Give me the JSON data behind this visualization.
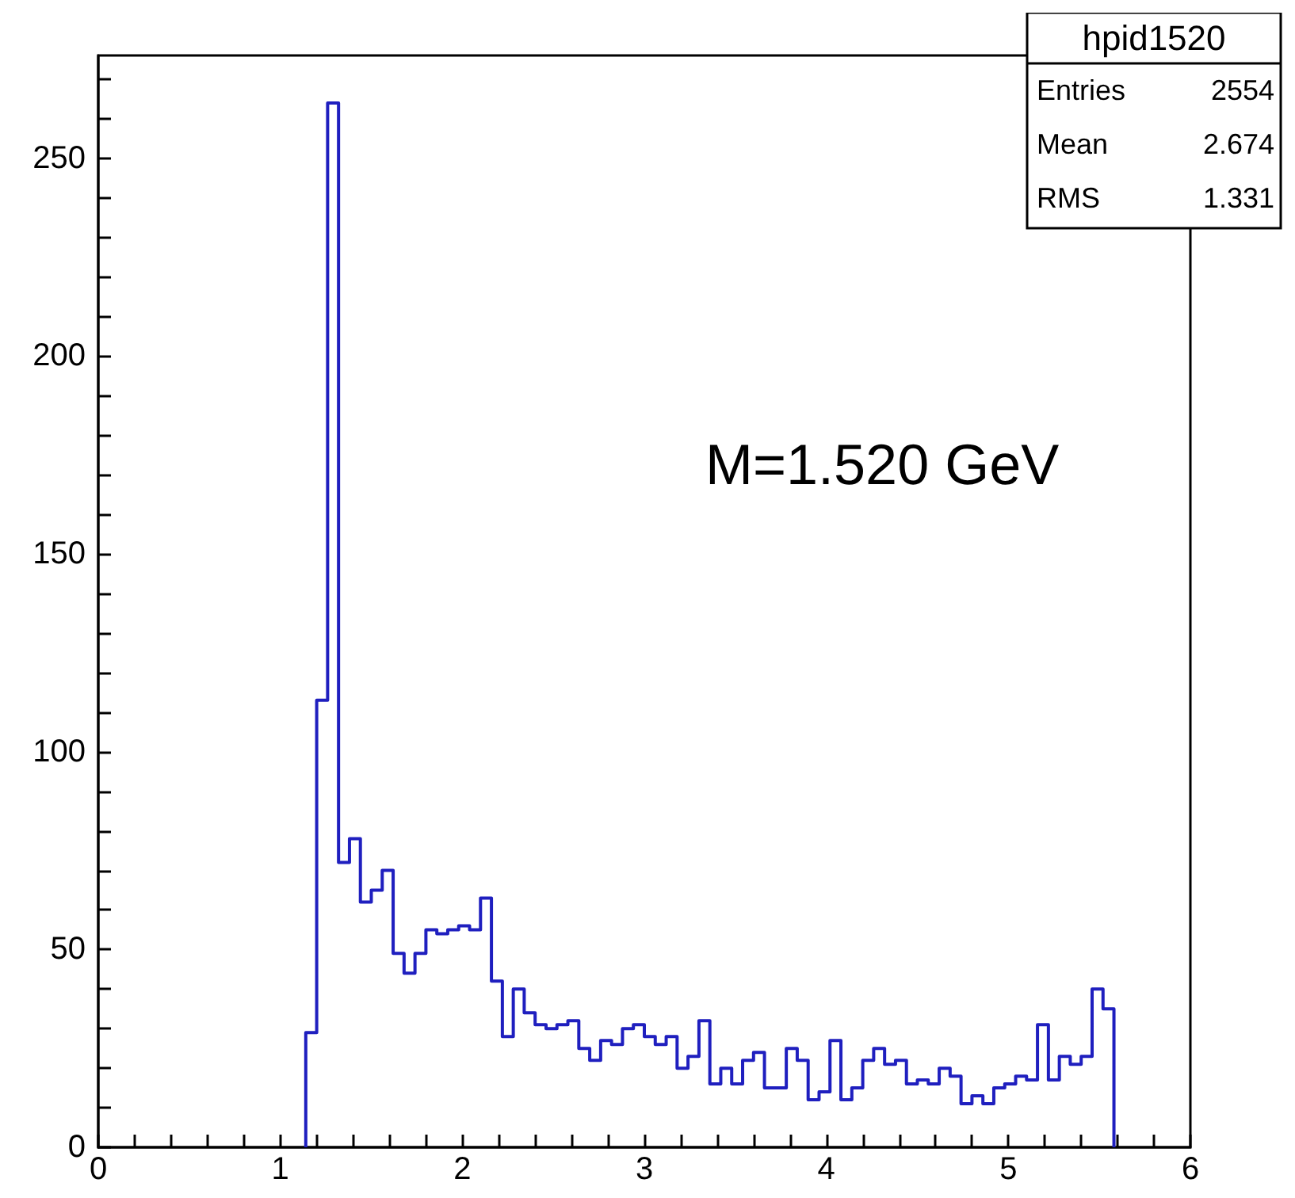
{
  "chart_data": {
    "type": "histogram",
    "bins": [
      1.14,
      1.2,
      1.26,
      1.32,
      1.38,
      1.44,
      1.5,
      1.56,
      1.62,
      1.68,
      1.74,
      1.8,
      1.86,
      1.92,
      1.98,
      2.04,
      2.1,
      2.16,
      2.22,
      2.28,
      2.34,
      2.4,
      2.46,
      2.52,
      2.58,
      2.64,
      2.7,
      2.76,
      2.82,
      2.88,
      2.94,
      3.0,
      3.06,
      3.12,
      3.18,
      3.24,
      3.3,
      3.36,
      3.42,
      3.48,
      3.54,
      3.6,
      3.66,
      3.72,
      3.78,
      3.84,
      3.9,
      3.96,
      4.02,
      4.08,
      4.14,
      4.2,
      4.26,
      4.32,
      4.38,
      4.44,
      4.5,
      4.56,
      4.62,
      4.68,
      4.74,
      4.8,
      4.86,
      4.92,
      4.98,
      5.04,
      5.1,
      5.16,
      5.22,
      5.28,
      5.34,
      5.4,
      5.46,
      5.52,
      5.58
    ],
    "values": [
      29,
      113,
      264,
      72,
      78,
      62,
      65,
      70,
      49,
      44,
      49,
      55,
      54,
      55,
      56,
      55,
      63,
      42,
      28,
      40,
      34,
      31,
      30,
      31,
      32,
      25,
      22,
      27,
      26,
      30,
      31,
      28,
      26,
      28,
      20,
      23,
      32,
      16,
      20,
      16,
      22,
      24,
      15,
      15,
      25,
      22,
      12,
      14,
      27,
      12,
      15,
      22,
      25,
      21,
      22,
      16,
      17,
      16,
      20,
      18,
      11,
      13,
      11,
      15,
      16,
      18,
      17,
      31,
      17,
      23,
      21,
      23,
      40,
      35
    ],
    "color": "#1f1fbf",
    "xlim": [
      0,
      6
    ],
    "ylim": [
      0,
      276
    ],
    "xticks": [
      0,
      {
        "value": 0.2,
        "label": null
      },
      {
        "value": 0.4,
        "label": null
      },
      {
        "value": 0.6,
        "label": null
      },
      {
        "value": 0.8,
        "label": null
      },
      1,
      {
        "value": 1.2,
        "label": null
      },
      {
        "value": 1.4,
        "label": null
      },
      {
        "value": 1.6,
        "label": null
      },
      {
        "value": 1.8,
        "label": null
      },
      2,
      {
        "value": 2.2,
        "label": null
      },
      {
        "value": 2.4,
        "label": null
      },
      {
        "value": 2.6,
        "label": null
      },
      {
        "value": 2.8,
        "label": null
      },
      3,
      {
        "value": 3.2,
        "label": null
      },
      {
        "value": 3.4,
        "label": null
      },
      {
        "value": 3.6,
        "label": null
      },
      {
        "value": 3.8,
        "label": null
      },
      4,
      {
        "value": 4.2,
        "label": null
      },
      {
        "value": 4.4,
        "label": null
      },
      {
        "value": 4.6,
        "label": null
      },
      {
        "value": 4.8,
        "label": null
      },
      5,
      {
        "value": 5.2,
        "label": null
      },
      {
        "value": 5.4,
        "label": null
      },
      {
        "value": 5.6,
        "label": null
      },
      {
        "value": 5.8,
        "label": null
      },
      6
    ],
    "yticks": [
      0,
      {
        "value": 10,
        "label": null
      },
      {
        "value": 20,
        "label": null
      },
      {
        "value": 30,
        "label": null
      },
      {
        "value": 40,
        "label": null
      },
      50,
      {
        "value": 60,
        "label": null
      },
      {
        "value": 70,
        "label": null
      },
      {
        "value": 80,
        "label": null
      },
      {
        "value": 90,
        "label": null
      },
      100,
      {
        "value": 110,
        "label": null
      },
      {
        "value": 120,
        "label": null
      },
      {
        "value": 130,
        "label": null
      },
      {
        "value": 140,
        "label": null
      },
      150,
      {
        "value": 160,
        "label": null
      },
      {
        "value": 170,
        "label": null
      },
      {
        "value": 180,
        "label": null
      },
      {
        "value": 190,
        "label": null
      },
      200,
      {
        "value": 210,
        "label": null
      },
      {
        "value": 220,
        "label": null
      },
      {
        "value": 230,
        "label": null
      },
      {
        "value": 240,
        "label": null
      },
      250,
      {
        "value": 260,
        "label": null
      },
      {
        "value": 270,
        "label": null
      }
    ],
    "annotations": [
      "hpid1520",
      "Entries",
      "2554",
      "Mean",
      "2.674",
      "RMS",
      "1.331",
      "M=1.520 GeV"
    ],
    "grid": false
  }
}
